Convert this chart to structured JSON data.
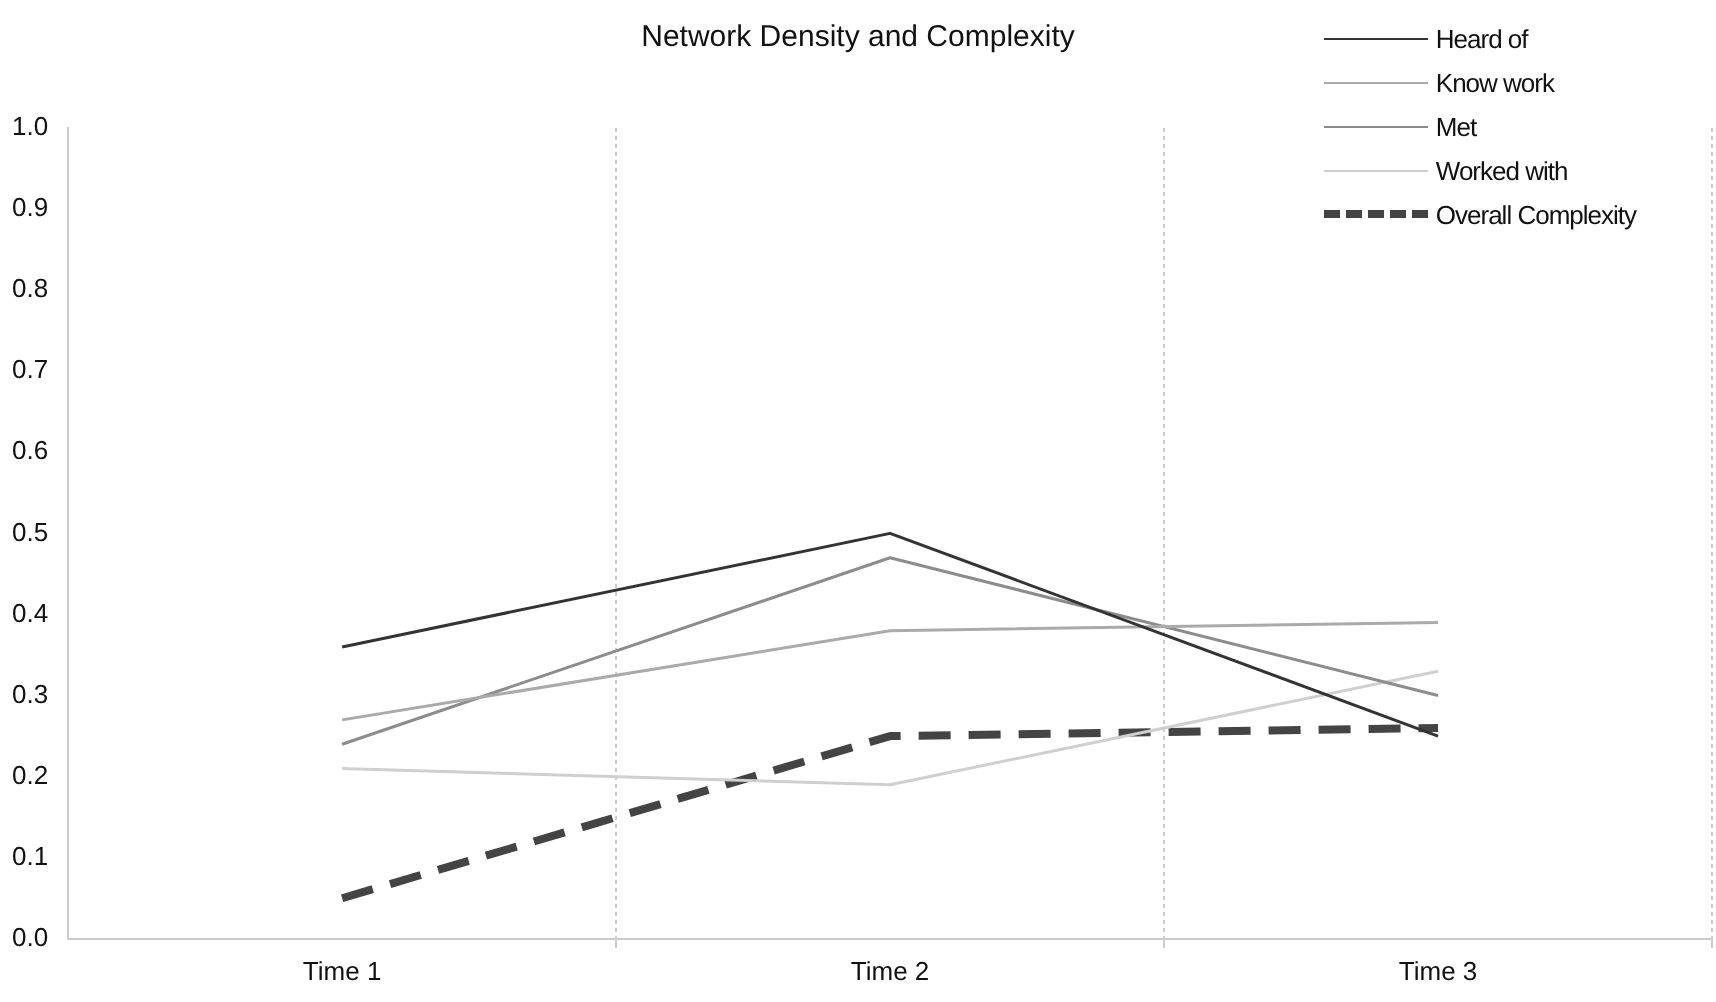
{
  "chart_data": {
    "type": "line",
    "title": "Network Density and Complexity",
    "categories": [
      "Time 1",
      "Time 2",
      "Time 3"
    ],
    "series": [
      {
        "name": "Heard of",
        "color": "#333333",
        "values": [
          0.36,
          0.5,
          0.25
        ]
      },
      {
        "name": "Know work",
        "color": "#aaaaaa",
        "values": [
          0.27,
          0.38,
          0.39
        ]
      },
      {
        "name": "Met",
        "color": "#8c8c8c",
        "values": [
          0.24,
          0.47,
          0.3
        ]
      },
      {
        "name": "Worked with",
        "color": "#cfcfcf",
        "values": [
          0.21,
          0.19,
          0.33
        ]
      },
      {
        "name": "Overall Complexity",
        "color": "#444444",
        "values": [
          0.05,
          0.25,
          0.26
        ],
        "line_style": "dashed"
      }
    ],
    "ylim": [
      0,
      1
    ],
    "yticks": [
      {
        "value": 0,
        "label": "0.0"
      },
      0.1,
      0.2,
      0.3,
      0.4,
      0.5,
      0.6,
      0.7,
      0.8,
      0.9,
      {
        "value": 1,
        "label": "1.0"
      }
    ],
    "grid": "x",
    "legend": "top right",
    "marker": "none"
  }
}
